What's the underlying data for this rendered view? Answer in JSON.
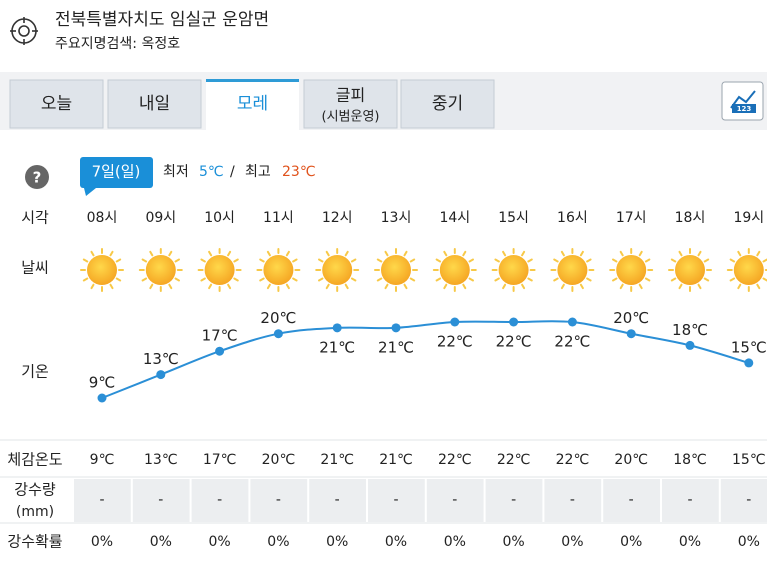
{
  "header": {
    "title": "전북특별자치도 임실군 운암면",
    "subtitle": "주요지명검색: 옥정호"
  },
  "tabs": [
    {
      "label": "오늘"
    },
    {
      "label": "내일"
    },
    {
      "label": "모레",
      "active": true
    },
    {
      "label": "글피",
      "note": "(시범운영)"
    },
    {
      "label": "중기"
    }
  ],
  "chart_button": "123",
  "help": "?",
  "date": "7일(일)",
  "min_label": "최저",
  "min": "5℃",
  "separator": "/",
  "max_label": "최고",
  "max": "23℃",
  "row_labels": {
    "time": "시각",
    "weather": "날씨",
    "temp": "기온",
    "feels": "체감온도",
    "rain": "강수량",
    "rain_unit": "(mm)",
    "prob": "강수확률"
  },
  "hours": [
    "08시",
    "09시",
    "10시",
    "11시",
    "12시",
    "13시",
    "14시",
    "15시",
    "16시",
    "17시",
    "18시",
    "19시"
  ],
  "temps": [
    {
      "value": 9,
      "label": "9℃"
    },
    {
      "value": 13,
      "label": "13℃"
    },
    {
      "value": 17,
      "label": "17℃"
    },
    {
      "value": 20,
      "label": "20℃"
    },
    {
      "value": 21,
      "label": "21℃"
    },
    {
      "value": 21,
      "label": "21℃"
    },
    {
      "value": 22,
      "label": "22℃"
    },
    {
      "value": 22,
      "label": "22℃"
    },
    {
      "value": 22,
      "label": "22℃"
    },
    {
      "value": 20,
      "label": "20℃"
    },
    {
      "value": 18,
      "label": "18℃"
    },
    {
      "value": 15,
      "label": "15℃"
    }
  ],
  "feels": [
    "9℃",
    "13℃",
    "17℃",
    "20℃",
    "21℃",
    "21℃",
    "22℃",
    "22℃",
    "22℃",
    "20℃",
    "18℃",
    "15℃"
  ],
  "rain": [
    "-",
    "-",
    "-",
    "-",
    "-",
    "-",
    "-",
    "-",
    "-",
    "-",
    "-",
    "-"
  ],
  "prob": [
    "0%",
    "0%",
    "0%",
    "0%",
    "0%",
    "0%",
    "0%",
    "0%",
    "0%",
    "0%",
    "0%",
    "0%"
  ]
}
